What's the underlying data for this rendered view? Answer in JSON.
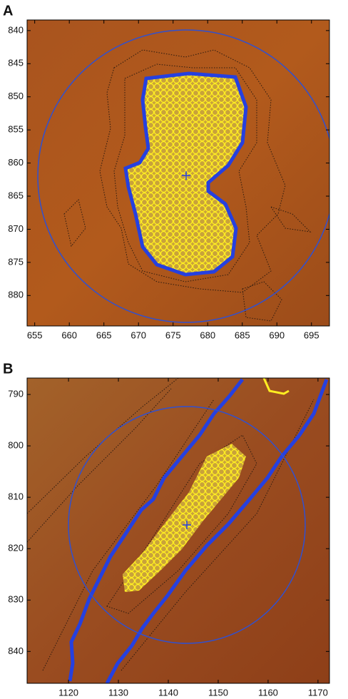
{
  "chart_data": [
    {
      "type": "image",
      "panel_label": "A",
      "xlim": [
        653.9,
        697.6
      ],
      "ylim": [
        838.4,
        884.6
      ],
      "y_inverted": true,
      "xticks": [
        655,
        660,
        665,
        670,
        675,
        680,
        685,
        690,
        695
      ],
      "yticks": [
        840,
        845,
        850,
        855,
        860,
        865,
        870,
        875,
        880
      ]
    },
    {
      "type": "image",
      "panel_label": "B",
      "xlim": [
        1111.7,
        1172.3
      ],
      "ylim": [
        786.8,
        846.2
      ],
      "y_inverted": true,
      "xticks": [
        1120,
        1130,
        1140,
        1150,
        1160,
        1170
      ],
      "yticks": [
        790,
        800,
        810,
        820,
        830,
        840
      ]
    }
  ]
}
